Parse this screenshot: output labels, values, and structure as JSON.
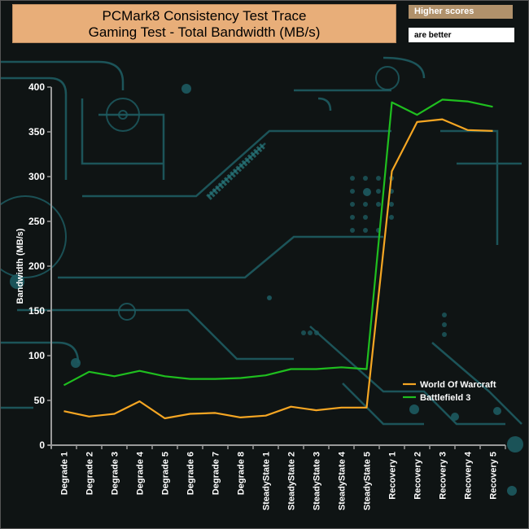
{
  "header": {
    "title_line1": "PCMark8 Consistency Test Trace",
    "title_line2": "Gaming Test - Total Bandwidth (MB/s)",
    "note_top": "Higher scores",
    "note_bottom": "are better"
  },
  "chart_data": {
    "type": "line",
    "title": "PCMark8 Consistency Test Trace Gaming Test - Total Bandwidth (MB/s)",
    "ylabel": "Bandwidth (MB/s)",
    "xlabel": "",
    "ylim": [
      0,
      400
    ],
    "yticks": [
      0,
      50,
      100,
      150,
      200,
      250,
      300,
      350,
      400
    ],
    "grid": false,
    "legend_position": "bottom-right",
    "categories": [
      "Degrade 1",
      "Degrade 2",
      "Degrade 3",
      "Degrade 4",
      "Degrade 5",
      "Degrade 6",
      "Degrade 7",
      "Degrade 8",
      "SteadyState 1",
      "SteadyState 2",
      "SteadyState 3",
      "SteadyState 4",
      "SteadyState 5",
      "Recovery 1",
      "Recovery 2",
      "Recovery 3",
      "Recovery 4",
      "Recovery 5"
    ],
    "series": [
      {
        "name": "World Of Warcraft",
        "color": "#f5a623",
        "values": [
          38,
          32,
          35,
          49,
          30,
          35,
          36,
          31,
          33,
          43,
          39,
          42,
          42,
          306,
          361,
          364,
          352,
          351
        ]
      },
      {
        "name": "Battlefield 3",
        "color": "#1fbf1f",
        "values": [
          67,
          82,
          77,
          83,
          77,
          74,
          74,
          75,
          78,
          85,
          85,
          87,
          85,
          383,
          369,
          386,
          384,
          378
        ]
      }
    ]
  }
}
